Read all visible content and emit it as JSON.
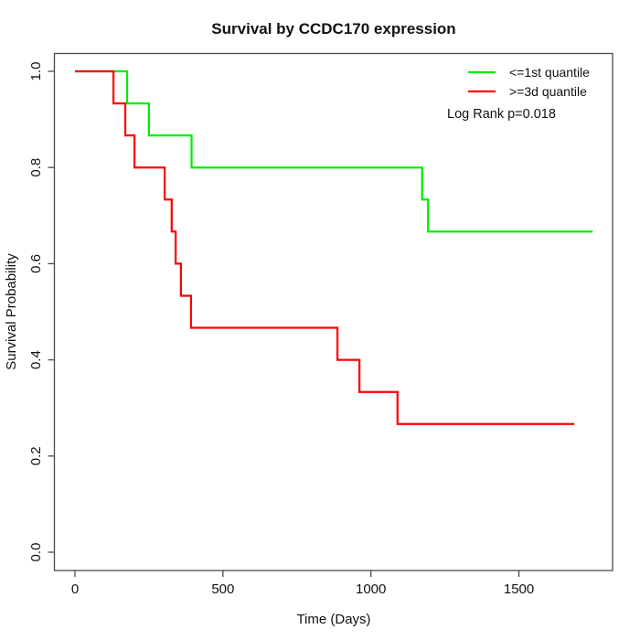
{
  "title": "Survival by CCDC170 expression",
  "legend": {
    "items": [
      {
        "label": "<=1st quantile",
        "color": "#00ee00"
      },
      {
        "label": ">=3d quantile",
        "color": "#ff0000"
      }
    ],
    "annotation": "Log Rank p=0.018"
  },
  "chart_data": {
    "type": "line",
    "subtype": "kaplan-meier-step",
    "title": "Survival by CCDC170 expression",
    "xlabel": "Time (Days)",
    "ylabel": "Survival Probability",
    "xlim": [
      0,
      1800
    ],
    "ylim": [
      0.0,
      1.0
    ],
    "xticks": [
      0,
      500,
      1000,
      1500
    ],
    "xtick_labels": [
      "0",
      "500",
      "1000",
      "1500"
    ],
    "yticks": [
      0.0,
      0.2,
      0.4,
      0.6,
      0.8,
      1.0
    ],
    "ytick_labels": [
      "0.0",
      "0.2",
      "0.4",
      "0.6",
      "0.8",
      "1.0"
    ],
    "grid": false,
    "legend_position": "top-right",
    "annotation": "Log Rank p=0.018",
    "series": [
      {
        "name": "<=1st quantile",
        "color": "#00ee00",
        "points": [
          [
            0,
            1.0
          ],
          [
            176,
            1.0
          ],
          [
            176,
            0.9333
          ],
          [
            250,
            0.9333
          ],
          [
            250,
            0.8667
          ],
          [
            394,
            0.8667
          ],
          [
            394,
            0.8
          ],
          [
            1173,
            0.8
          ],
          [
            1173,
            0.7333
          ],
          [
            1193,
            0.7333
          ],
          [
            1193,
            0.6667
          ],
          [
            1749,
            0.6667
          ]
        ]
      },
      {
        "name": ">=3d quantile",
        "color": "#ff0000",
        "points": [
          [
            0,
            1.0
          ],
          [
            130,
            1.0
          ],
          [
            130,
            0.9333
          ],
          [
            170,
            0.9333
          ],
          [
            170,
            0.8667
          ],
          [
            201,
            0.8667
          ],
          [
            201,
            0.8
          ],
          [
            303,
            0.8
          ],
          [
            303,
            0.7333
          ],
          [
            327,
            0.7333
          ],
          [
            327,
            0.6667
          ],
          [
            340,
            0.6667
          ],
          [
            340,
            0.6
          ],
          [
            358,
            0.6
          ],
          [
            358,
            0.5333
          ],
          [
            392,
            0.5333
          ],
          [
            392,
            0.4667
          ],
          [
            887,
            0.4667
          ],
          [
            887,
            0.4
          ],
          [
            961,
            0.4
          ],
          [
            961,
            0.3333
          ],
          [
            1090,
            0.3333
          ],
          [
            1090,
            0.2667
          ],
          [
            1687,
            0.2667
          ]
        ]
      }
    ]
  }
}
